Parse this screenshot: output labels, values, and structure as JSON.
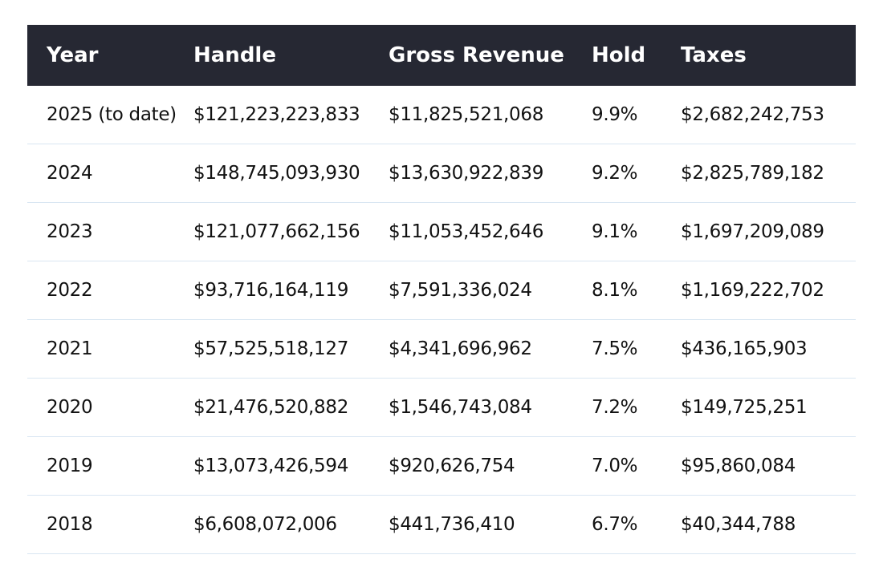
{
  "table": {
    "headers": [
      "Year",
      "Handle",
      "Gross Revenue",
      "Hold",
      "Taxes"
    ],
    "rows": [
      [
        "2025 (to date)",
        "$121,223,223,833",
        "$11,825,521,068",
        "9.9%",
        "$2,682,242,753"
      ],
      [
        "2024",
        "$148,745,093,930",
        "$13,630,922,839",
        "9.2%",
        "$2,825,789,182"
      ],
      [
        "2023",
        "$121,077,662,156",
        "$11,053,452,646",
        "9.1%",
        "$1,697,209,089"
      ],
      [
        "2022",
        "$93,716,164,119",
        "$7,591,336,024",
        "8.1%",
        "$1,169,222,702"
      ],
      [
        "2021",
        "$57,525,518,127",
        "$4,341,696,962",
        "7.5%",
        "$436,165,903"
      ],
      [
        "2020",
        "$21,476,520,882",
        "$1,546,743,084",
        "7.2%",
        "$149,725,251"
      ],
      [
        "2019",
        "$13,073,426,594",
        "$920,626,754",
        "7.0%",
        "$95,860,084"
      ],
      [
        "2018",
        "$6,608,072,006",
        "$441,736,410",
        "6.7%",
        "$40,344,788"
      ]
    ]
  }
}
